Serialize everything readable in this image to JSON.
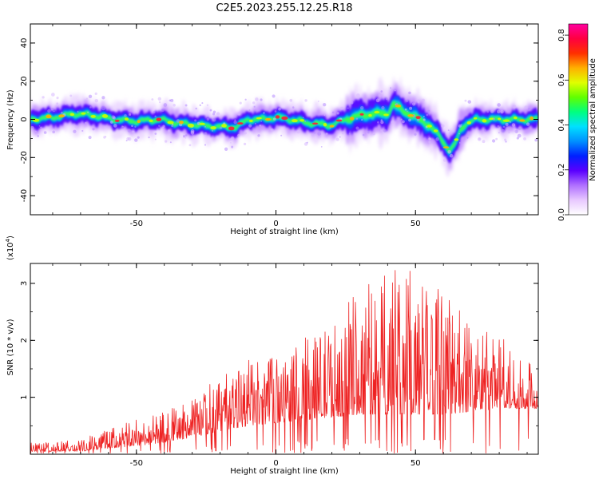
{
  "figure_title": "C2E5.2023.255.12.25.R18",
  "chart_data": [
    {
      "type": "heatmap",
      "xlabel": "Height of straight line (km)",
      "ylabel": "Frequency (Hz)",
      "xlim": [
        -88,
        94
      ],
      "ylim": [
        -50,
        50
      ],
      "xticks": [
        -50,
        0,
        50
      ],
      "yticks": [
        -40,
        -20,
        0,
        20,
        40
      ],
      "grid": false,
      "colorbar": {
        "label": "Normalized spectral amplitude",
        "range": [
          0.0,
          0.85
        ],
        "ticks": [
          0.0,
          0.2,
          0.4,
          0.6,
          0.8
        ],
        "colormap": [
          "#ffffff",
          "#e8c8ff",
          "#b070ff",
          "#5a00ff",
          "#0020ff",
          "#0090ff",
          "#00e0ff",
          "#00ff80",
          "#60ff00",
          "#e0ff00",
          "#ffb000",
          "#ff3000",
          "#ff0040",
          "#ff00a0"
        ]
      },
      "ridge": {
        "x": [
          -88,
          -80,
          -72,
          -65,
          -58,
          -50,
          -42,
          -35,
          -28,
          -20,
          -14,
          -10,
          -5,
          0,
          5,
          12,
          20,
          25,
          30,
          35,
          40,
          42,
          45,
          50,
          55,
          58,
          60,
          62,
          64,
          66,
          68,
          72,
          78,
          85,
          94
        ],
        "frequency": [
          0,
          1,
          3,
          2,
          0,
          -1,
          0,
          -2,
          -3,
          -4,
          -4,
          0,
          0,
          1,
          0,
          -2,
          -3,
          0,
          2,
          3,
          3,
          8,
          5,
          1,
          -3,
          -8,
          -12,
          -16,
          -14,
          -6,
          -2,
          0,
          0,
          0,
          0
        ],
        "amplitude_peak": 0.85
      }
    },
    {
      "type": "line",
      "xlabel": "Height of straight line (km)",
      "ylabel": "SNR (10 * v/v)",
      "yscale_label": "(x10",
      "yscale_exp": "4",
      "yscale_close": ")",
      "xlim": [
        -88,
        94
      ],
      "ylim": [
        0,
        3.35
      ],
      "xticks": [
        -50,
        0,
        50
      ],
      "yticks": [
        1,
        2,
        3
      ],
      "grid": false,
      "color": "#ee2222",
      "envelope": {
        "x": [
          -88,
          -70,
          -60,
          -50,
          -40,
          -30,
          -20,
          -10,
          0,
          10,
          20,
          30,
          40,
          50,
          60,
          70,
          80,
          94
        ],
        "baseline": [
          0.05,
          0.05,
          0.1,
          0.15,
          0.2,
          0.3,
          0.4,
          0.5,
          0.55,
          0.6,
          0.65,
          0.7,
          0.7,
          0.7,
          0.7,
          0.75,
          0.8,
          0.8
        ],
        "peak": [
          0.2,
          0.25,
          0.45,
          0.6,
          0.75,
          0.95,
          1.3,
          1.6,
          1.7,
          2.0,
          2.3,
          2.9,
          3.3,
          3.1,
          2.9,
          2.4,
          2.0,
          1.5
        ]
      }
    }
  ]
}
